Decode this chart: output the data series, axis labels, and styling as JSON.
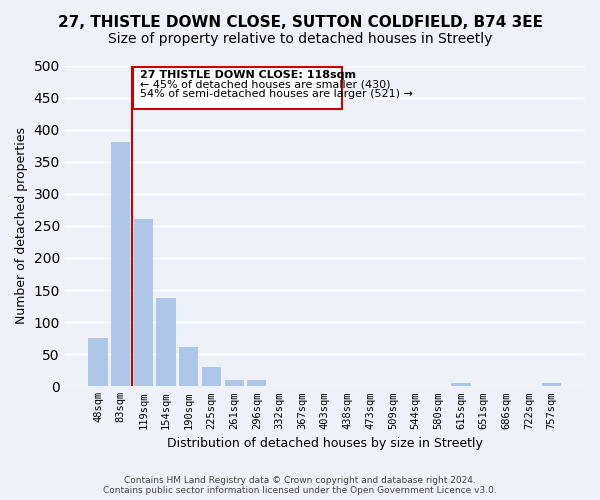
{
  "title": "27, THISTLE DOWN CLOSE, SUTTON COLDFIELD, B74 3EE",
  "subtitle": "Size of property relative to detached houses in Streetly",
  "xlabel": "Distribution of detached houses by size in Streetly",
  "ylabel": "Number of detached properties",
  "bar_labels": [
    "48sqm",
    "83sqm",
    "119sqm",
    "154sqm",
    "190sqm",
    "225sqm",
    "261sqm",
    "296sqm",
    "332sqm",
    "367sqm",
    "403sqm",
    "438sqm",
    "473sqm",
    "509sqm",
    "544sqm",
    "580sqm",
    "615sqm",
    "651sqm",
    "686sqm",
    "722sqm",
    "757sqm"
  ],
  "bar_values": [
    75,
    380,
    260,
    137,
    62,
    30,
    10,
    10,
    0,
    0,
    0,
    0,
    0,
    0,
    0,
    0,
    5,
    0,
    0,
    0,
    5
  ],
  "bar_color": "#aec6e8",
  "vline_x": 1.5,
  "vline_color": "#cc0000",
  "ylim": [
    0,
    500
  ],
  "yticks": [
    0,
    50,
    100,
    150,
    200,
    250,
    300,
    350,
    400,
    450,
    500
  ],
  "annotation_title": "27 THISTLE DOWN CLOSE: 118sqm",
  "annotation_line1": "← 45% of detached houses are smaller (430)",
  "annotation_line2": "54% of semi-detached houses are larger (521) →",
  "footer_line1": "Contains HM Land Registry data © Crown copyright and database right 2024.",
  "footer_line2": "Contains public sector information licensed under the Open Government Licence v3.0.",
  "background_color": "#eef2f8",
  "grid_color": "#ffffff",
  "title_fontsize": 11,
  "subtitle_fontsize": 10
}
